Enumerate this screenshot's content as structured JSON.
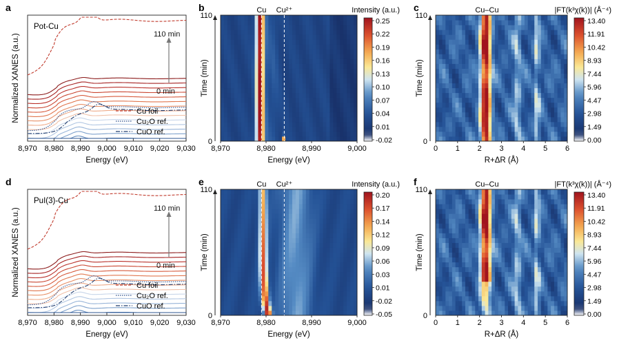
{
  "chart_data": [
    {
      "panel": "a",
      "type": "line",
      "sample_label": "Pot-Cu",
      "xlabel": "Energy (eV)",
      "ylabel": "Normalized XANES (a.u.)",
      "xlim": [
        8970,
        9030
      ],
      "x_ticks": [
        "8,970",
        "8,980",
        "8,990",
        "9,000",
        "9,010",
        "9,020",
        "9,030"
      ],
      "time_labels": {
        "top": "110 min",
        "bottom": "0 min"
      },
      "legend": [
        {
          "name": "Cu foil",
          "style": "dashed",
          "color": "#c0392b"
        },
        {
          "name": "Cu₂O ref.",
          "style": "dotted",
          "color": "#2c4f8c"
        },
        {
          "name": "CuO ref.",
          "style": "dashdot",
          "color": "#1f3c6e"
        }
      ],
      "grid": false
    },
    {
      "panel": "b",
      "type": "heatmap",
      "xlabel": "Energy (eV)",
      "ylabel": "Time (min)",
      "xlim": [
        8970,
        9000
      ],
      "ylim": [
        0,
        110
      ],
      "x_ticks": [
        "8,970",
        "8,980",
        "8,990",
        "9,000"
      ],
      "y_ticks": [
        "0",
        "110"
      ],
      "peak_labels": [
        {
          "text": "Cu",
          "x": 8979
        },
        {
          "text": "Cu²⁺",
          "x": 8984
        }
      ],
      "colorbar": {
        "label": "Intensity (a.u.)",
        "ticks": [
          "0.25",
          "0.22",
          "0.19",
          "0.16",
          "0.13",
          "0.10",
          "0.07",
          "0.04",
          "0.01",
          "-0.02"
        ]
      }
    },
    {
      "panel": "c",
      "type": "heatmap",
      "title": "Cu–Cu",
      "xlabel": "R+ΔR (Å)",
      "ylabel": "Time (min)",
      "xlim": [
        0,
        6
      ],
      "ylim": [
        0,
        110
      ],
      "x_ticks": [
        "0",
        "1",
        "2",
        "3",
        "4",
        "5",
        "6"
      ],
      "y_ticks": [
        "0",
        "110"
      ],
      "colorbar": {
        "label": "|FT(k³χ(k))| (Å⁻⁴)",
        "ticks": [
          "13.40",
          "11.91",
          "10.42",
          "8.93",
          "7.44",
          "5.96",
          "4.47",
          "2.98",
          "1.49",
          "0.00"
        ]
      }
    },
    {
      "panel": "d",
      "type": "line",
      "sample_label": "PuI(3)-Cu",
      "xlabel": "Energy (eV)",
      "ylabel": "Normalized XANES (a.u.)",
      "xlim": [
        8970,
        9030
      ],
      "x_ticks": [
        "8,970",
        "8,980",
        "8,990",
        "9,000",
        "9,010",
        "9,020",
        "9,030"
      ],
      "time_labels": {
        "top": "110 min",
        "bottom": "0 min"
      },
      "legend": [
        {
          "name": "Cu foil",
          "style": "dashed",
          "color": "#c0392b"
        },
        {
          "name": "Cu₂O ref.",
          "style": "dotted",
          "color": "#2c4f8c"
        },
        {
          "name": "CuO ref.",
          "style": "dashdot",
          "color": "#1f3c6e"
        }
      ],
      "grid": false
    },
    {
      "panel": "e",
      "type": "heatmap",
      "xlabel": "Energy (eV)",
      "ylabel": "Time (min)",
      "xlim": [
        8970,
        9000
      ],
      "ylim": [
        0,
        110
      ],
      "x_ticks": [
        "8,970",
        "8,980",
        "8,990",
        "9,000"
      ],
      "y_ticks": [
        "0",
        "110"
      ],
      "peak_labels": [
        {
          "text": "Cu",
          "x": 8979
        },
        {
          "text": "Cu²⁺",
          "x": 8984
        }
      ],
      "colorbar": {
        "label": "Intensity (a.u.)",
        "ticks": [
          "0.20",
          "0.17",
          "0.14",
          "0.12",
          "0.09",
          "0.06",
          "0.03",
          "0.01",
          "-0.02",
          "-0.05"
        ]
      }
    },
    {
      "panel": "f",
      "type": "heatmap",
      "title": "Cu–Cu",
      "xlabel": "R+ΔR (Å)",
      "ylabel": "Time (min)",
      "xlim": [
        0,
        6
      ],
      "ylim": [
        0,
        110
      ],
      "x_ticks": [
        "0",
        "1",
        "2",
        "3",
        "4",
        "5",
        "6"
      ],
      "y_ticks": [
        "0",
        "110"
      ],
      "colorbar": {
        "label": "|FT(k³χ(k))| (Å⁻⁴)",
        "ticks": [
          "13.40",
          "11.91",
          "10.42",
          "8.93",
          "7.44",
          "5.96",
          "4.47",
          "2.98",
          "1.49",
          "0.00"
        ]
      }
    }
  ]
}
